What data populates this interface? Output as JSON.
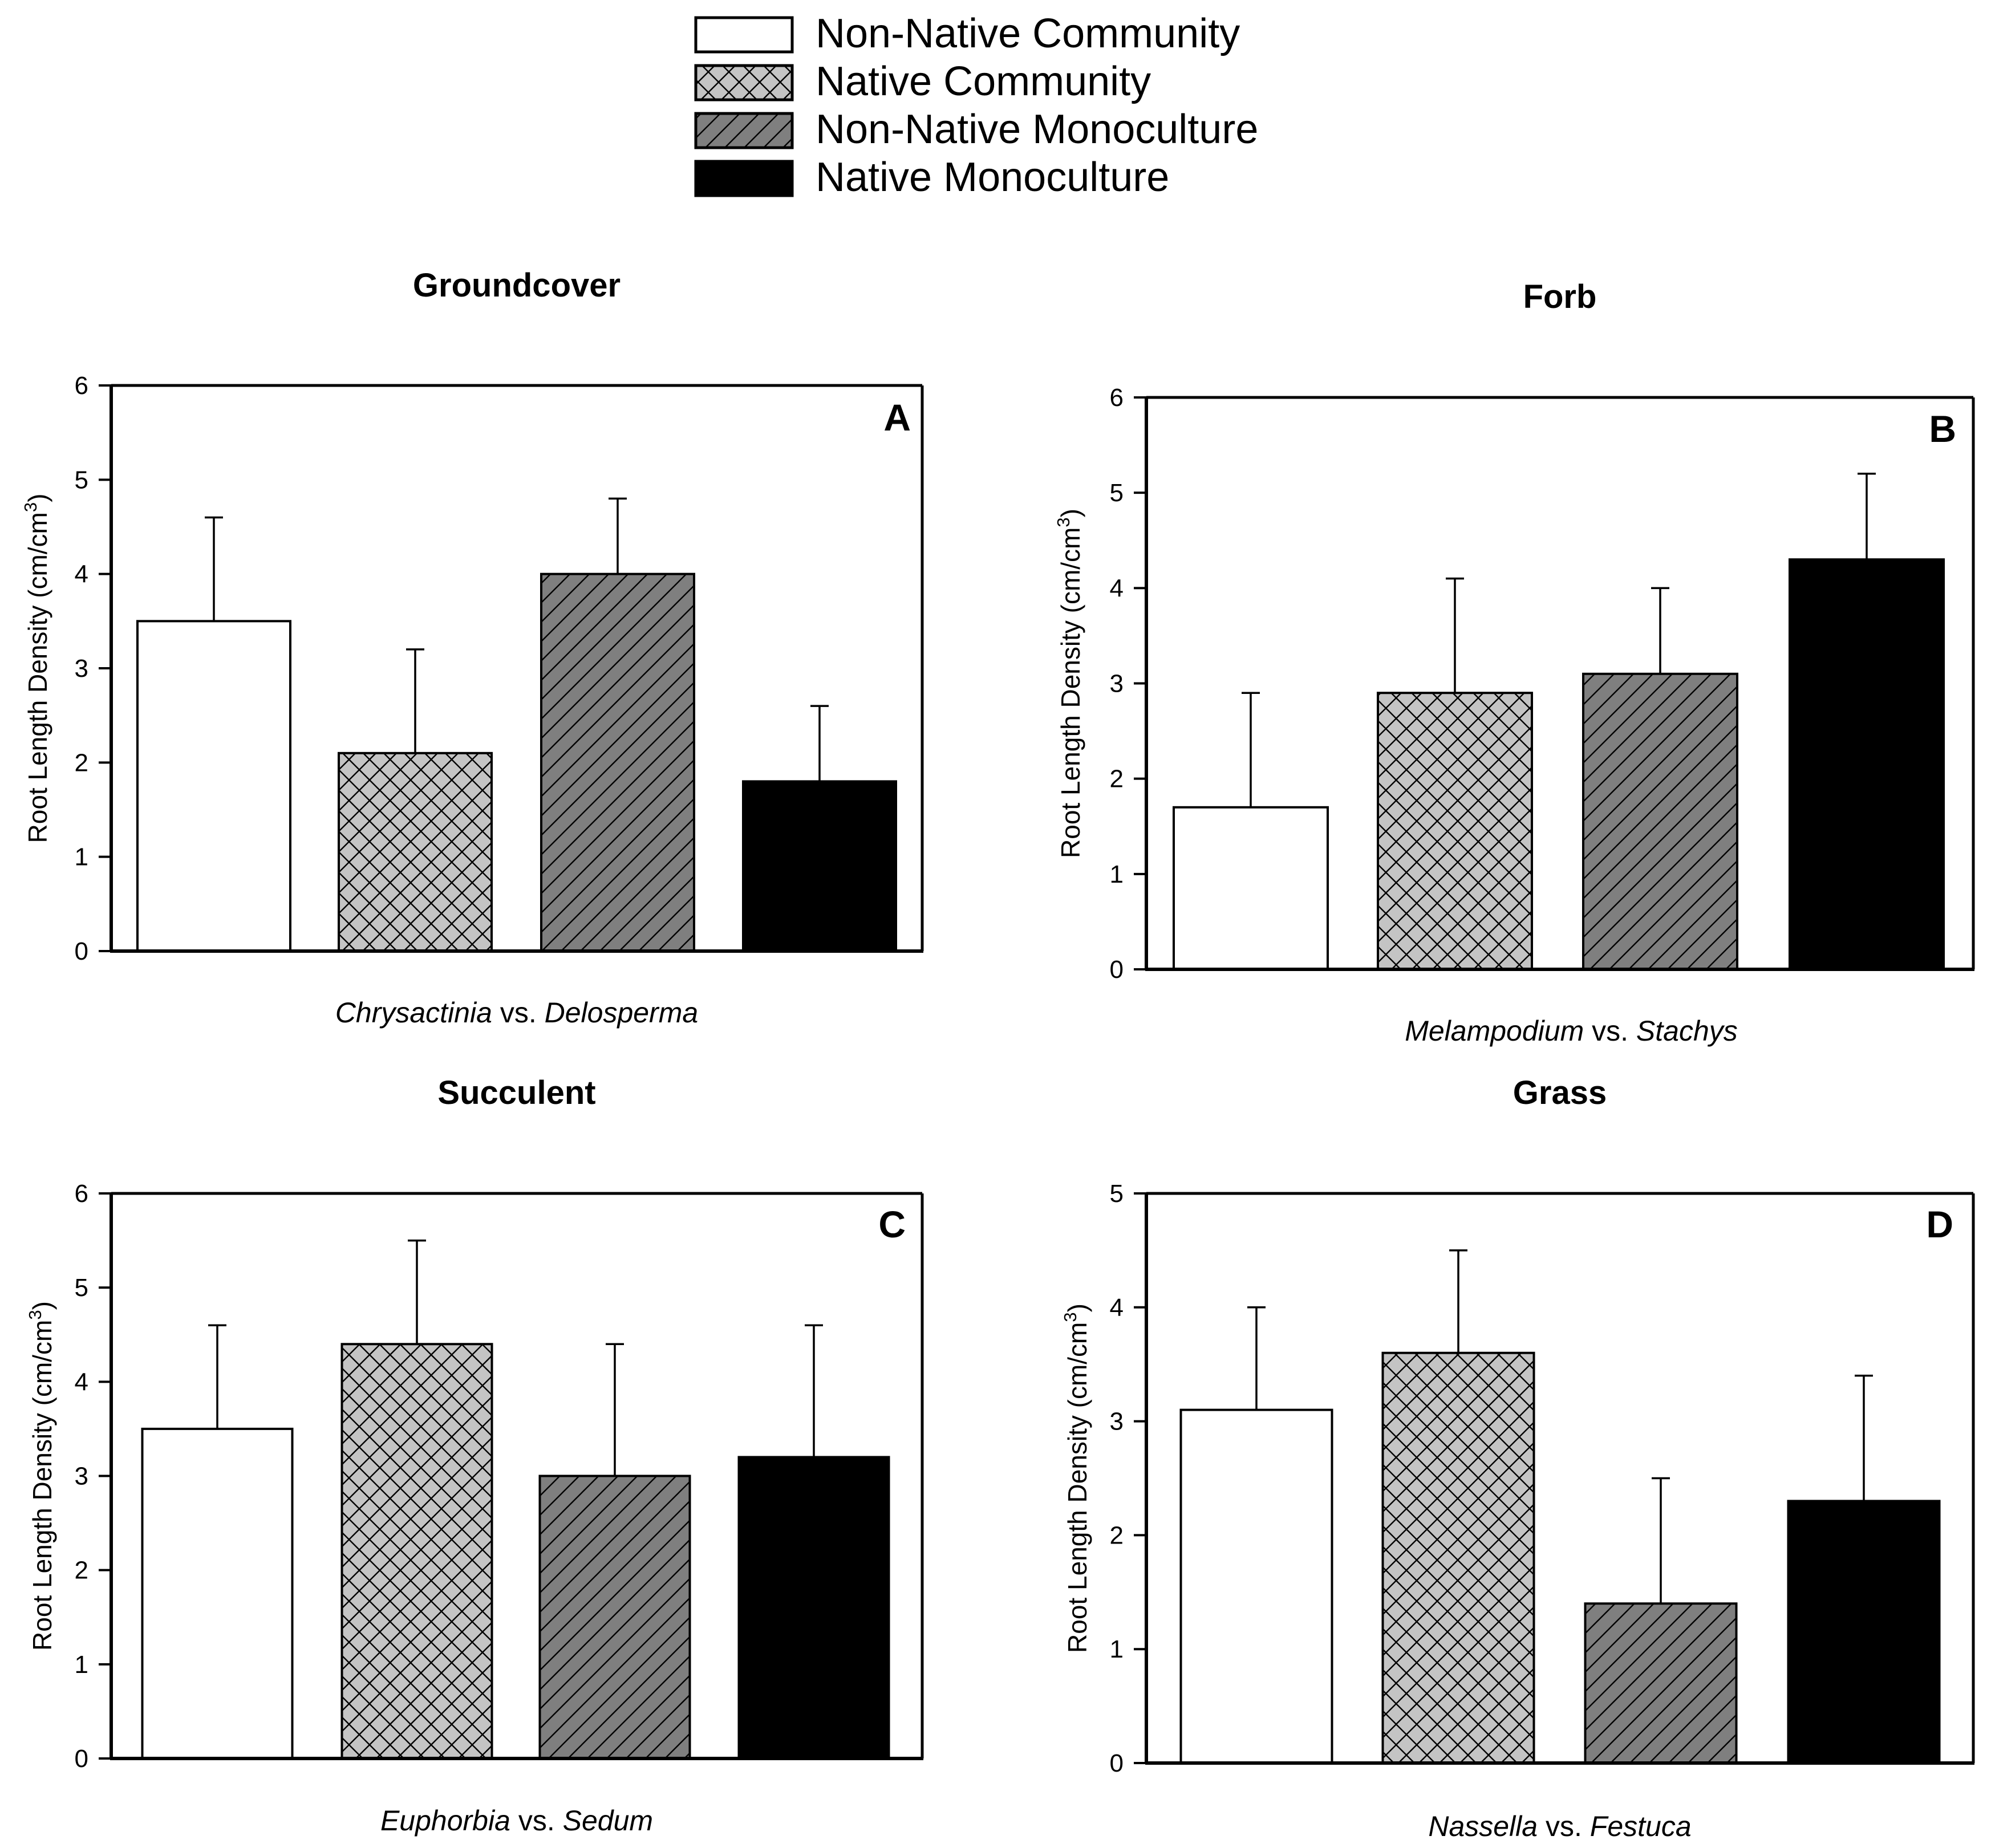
{
  "legend": {
    "items": [
      {
        "label": "Non-Native Community",
        "style": "white"
      },
      {
        "label": "Native Community",
        "style": "crosshatch"
      },
      {
        "label": "Non-Native Monoculture",
        "style": "diagonal"
      },
      {
        "label": "Native Monoculture",
        "style": "black"
      }
    ]
  },
  "colors": {
    "white_fill": "#ffffff",
    "crosshatch_fill": "#c4c4c4",
    "diagonal_fill": "#7f7f7f",
    "black_fill": "#000000",
    "stroke": "#000000"
  },
  "chart_data": [
    {
      "type": "bar",
      "title": "Groundcover",
      "letter": "A",
      "xlabel_parts": [
        {
          "text": "Chrysactinia",
          "italic": true
        },
        {
          "text": " vs. ",
          "italic": false
        },
        {
          "text": "Delosperma",
          "italic": true
        }
      ],
      "ylabel": "Root Length Density (cm/cm",
      "ylabel_sup": "3",
      "ylabel_end": ")",
      "ylim": [
        0,
        6
      ],
      "yticks": [
        "0",
        "1",
        "2",
        "3",
        "4",
        "5",
        "6"
      ],
      "categories": [
        "Non-Native Community",
        "Native Community",
        "Non-Native Monoculture",
        "Native Monoculture"
      ],
      "values": [
        3.5,
        2.1,
        4.0,
        1.8
      ],
      "errors": [
        1.1,
        1.1,
        0.8,
        0.8
      ]
    },
    {
      "type": "bar",
      "title": "Forb",
      "letter": "B",
      "xlabel_parts": [
        {
          "text": "Melampodium",
          "italic": true
        },
        {
          "text": " vs. ",
          "italic": false
        },
        {
          "text": "Stachys",
          "italic": true
        }
      ],
      "ylabel": "Root Length Density (cm/cm",
      "ylabel_sup": "3",
      "ylabel_end": ")",
      "ylim": [
        0,
        6
      ],
      "yticks": [
        "0",
        "1",
        "2",
        "3",
        "4",
        "5",
        "6"
      ],
      "categories": [
        "Non-Native Community",
        "Native Community",
        "Non-Native Monoculture",
        "Native Monoculture"
      ],
      "values": [
        1.7,
        2.9,
        3.1,
        4.3
      ],
      "errors": [
        1.2,
        1.2,
        0.9,
        0.9
      ]
    },
    {
      "type": "bar",
      "title": "Succulent",
      "letter": "C",
      "xlabel_parts": [
        {
          "text": "Euphorbia",
          "italic": true
        },
        {
          "text": " vs. ",
          "italic": false
        },
        {
          "text": "Sedum",
          "italic": true
        }
      ],
      "ylabel": "Root Length Density (cm/cm",
      "ylabel_sup": "3",
      "ylabel_end": ")",
      "ylim": [
        0,
        6
      ],
      "yticks": [
        "0",
        "1",
        "2",
        "3",
        "4",
        "5",
        "6"
      ],
      "categories": [
        "Non-Native Community",
        "Native Community",
        "Non-Native Monoculture",
        "Native Monoculture"
      ],
      "values": [
        3.5,
        4.4,
        3.0,
        3.2
      ],
      "errors": [
        1.1,
        1.1,
        1.4,
        1.4
      ]
    },
    {
      "type": "bar",
      "title": "Grass",
      "letter": "D",
      "xlabel_parts": [
        {
          "text": "Nassella",
          "italic": true
        },
        {
          "text": " vs. ",
          "italic": false
        },
        {
          "text": "Festuca",
          "italic": true
        }
      ],
      "ylabel": "Root Length Density (cm/cm",
      "ylabel_sup": "3",
      "ylabel_end": ")",
      "ylim": [
        0,
        5
      ],
      "yticks": [
        "0",
        "1",
        "2",
        "3",
        "4",
        "5"
      ],
      "categories": [
        "Non-Native Community",
        "Native Community",
        "Non-Native Monoculture",
        "Native Monoculture"
      ],
      "values": [
        3.1,
        3.6,
        1.4,
        2.3
      ],
      "errors": [
        0.9,
        0.9,
        1.1,
        1.1
      ]
    }
  ]
}
